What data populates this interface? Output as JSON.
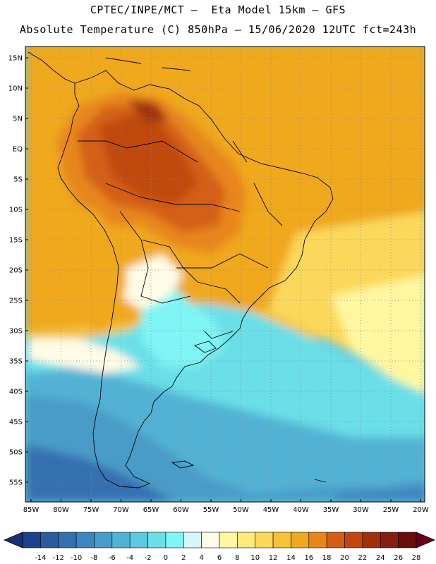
{
  "header": {
    "line1": "CPTEC/INPE/MCT —  Eta Model 15km — GFS",
    "line2": "Absolute Temperature (C) 850hPa — 15/06/2020 12UTC fct=243h"
  },
  "map": {
    "lat_labels": [
      "15N",
      "10N",
      "5N",
      "EQ",
      "5S",
      "10S",
      "15S",
      "20S",
      "25S",
      "30S",
      "35S",
      "40S",
      "45S",
      "50S",
      "55S"
    ],
    "lon_labels": [
      "85W",
      "80W",
      "75W",
      "70W",
      "65W",
      "60W",
      "55W",
      "50W",
      "45W",
      "40W",
      "35W",
      "30W",
      "25W",
      "20W"
    ],
    "gridlines": "dotted"
  },
  "colorbar": {
    "tick_labels": [
      "-14",
      "-12",
      "-10",
      "-8",
      "-6",
      "-4",
      "-2",
      "0",
      "2",
      "4",
      "6",
      "8",
      "10",
      "12",
      "14",
      "16",
      "18",
      "20",
      "22",
      "24",
      "26",
      "28"
    ],
    "colors": [
      "#1f3f8f",
      "#2a5aa0",
      "#3470b0",
      "#3d86c0",
      "#489cc8",
      "#52b2d4",
      "#5ec8de",
      "#6adfe8",
      "#7ff5f5",
      "#d6f6fb",
      "#fffbe6",
      "#fff7a0",
      "#ffe97a",
      "#fcd85a",
      "#f5c23a",
      "#f0a81e",
      "#e8861a",
      "#d45e14",
      "#c04810",
      "#a03010",
      "#842010",
      "#6a0d0d"
    ],
    "under_color": "#1a3075",
    "over_color": "#6a0018"
  }
}
